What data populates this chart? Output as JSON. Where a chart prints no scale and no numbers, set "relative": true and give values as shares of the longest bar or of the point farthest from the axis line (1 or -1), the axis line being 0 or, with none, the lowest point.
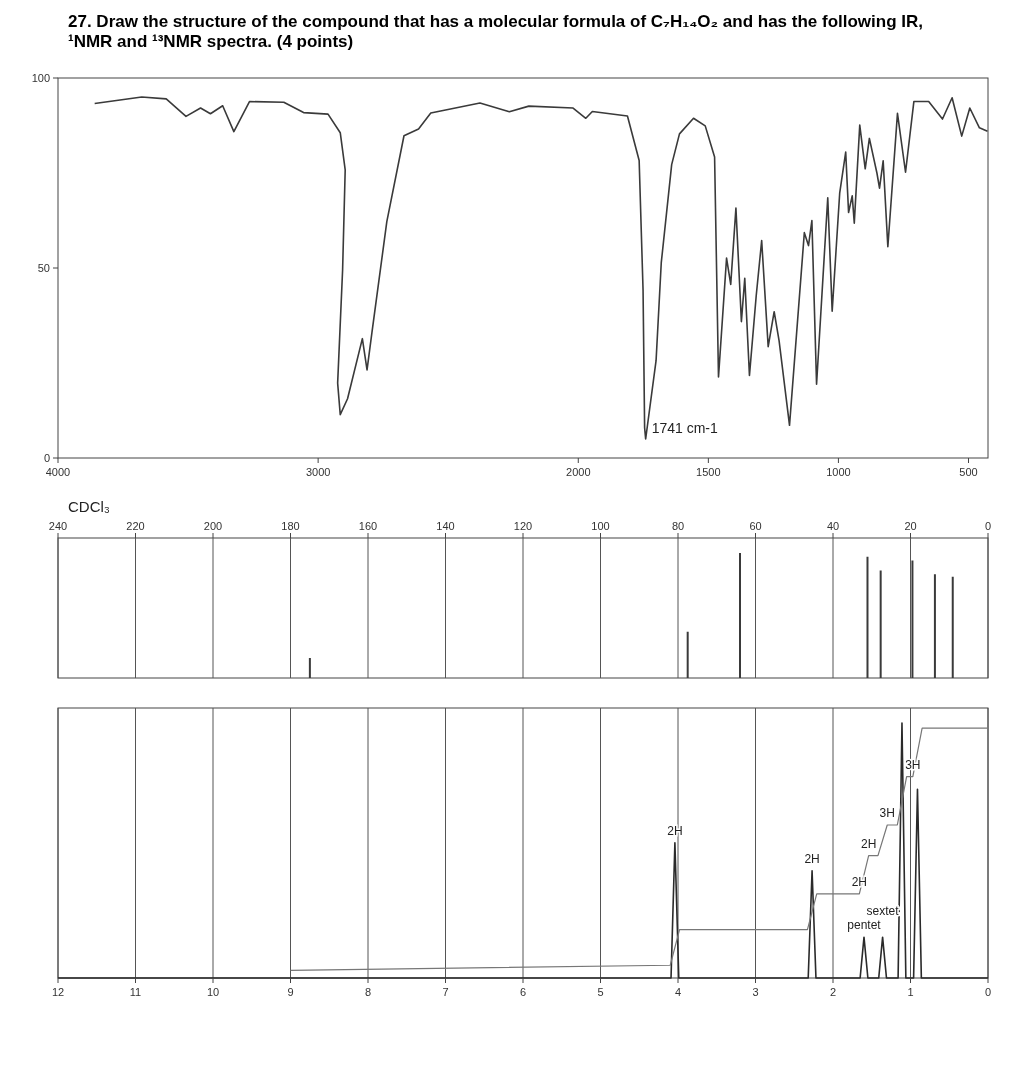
{
  "chart_data": [
    {
      "type": "line",
      "title": "27. Draw the structure of the compound that has a molecular formula of C₇H₁₄O₂ and has the following IR, ¹NMR and ¹³NMR spectra. (4 points)",
      "xlim": [
        4000,
        425
      ],
      "xticks": [
        4000,
        3000,
        2000,
        1500,
        1000,
        500
      ],
      "ylim": [
        0,
        100
      ],
      "yticks": [
        0,
        50,
        100
      ],
      "annotations": [
        {
          "text": "1741 cm-1",
          "x": 1741,
          "y": 5
        }
      ],
      "series": [
        {
          "color": "#3a3a3a",
          "x": [
            3859,
            3678,
            3584,
            3508,
            3452,
            3414,
            3367,
            3324,
            3264,
            3132,
            3056,
            2962,
            2915,
            2896,
            2906,
            2925,
            2915,
            2887,
            2830,
            2812,
            2793,
            2736,
            2670,
            2614,
            2567,
            2378,
            2265,
            2190,
            2020,
            1971,
            1946,
            1811,
            1766,
            1751,
            1745,
            1741,
            1701,
            1681,
            1641,
            1611,
            1557,
            1512,
            1476,
            1461,
            1430,
            1414,
            1394,
            1373,
            1360,
            1342,
            1316,
            1295,
            1270,
            1247,
            1228,
            1188,
            1131,
            1115,
            1102,
            1084,
            1041,
            1024,
            995,
            972,
            961,
            947,
            939,
            918,
            897,
            881,
            852,
            842,
            828,
            810,
            773,
            742,
            710,
            653,
            600,
            563,
            526,
            495,
            458,
            427
          ],
          "values": [
            93.3,
            95,
            94.5,
            89.9,
            92.1,
            90.6,
            92.7,
            85.9,
            93.8,
            93.6,
            90.9,
            90.5,
            85.6,
            75.8,
            49.4,
            19.7,
            11.4,
            15.6,
            31.4,
            23.2,
            33.1,
            62.2,
            84.8,
            86.6,
            90.8,
            93.4,
            91.1,
            92.6,
            92.1,
            89.4,
            91.2,
            90,
            78.3,
            44.2,
            8,
            5,
            25.6,
            51.4,
            77.2,
            85.3,
            89.4,
            87.4,
            79.2,
            21.3,
            52.6,
            45.7,
            65.8,
            35.9,
            47.3,
            21.7,
            42.7,
            57.2,
            29.3,
            38.5,
            30.8,
            8.6,
            59.3,
            55.9,
            62.5,
            19.4,
            68.5,
            38.6,
            69.8,
            80.5,
            64.6,
            69,
            61.8,
            87.6,
            76.1,
            84.1,
            75,
            71,
            78.2,
            55.6,
            90.7,
            75.2,
            93.8,
            93.8,
            89.2,
            94.8,
            84.7,
            92.1,
            86.9,
            86
          ]
        }
      ]
    },
    {
      "type": "bar",
      "relative": true,
      "xlim": [
        240,
        0
      ],
      "xticks": [
        240,
        220,
        200,
        180,
        160,
        140,
        120,
        100,
        80,
        60,
        40,
        20,
        0
      ],
      "grid": "x",
      "annotations": [
        "CDCl₃"
      ],
      "x": [
        175,
        77.5,
        64,
        31.1,
        27.7,
        19.5,
        13.7,
        9.1
      ],
      "series": [
        {
          "color": "#3a3a3a",
          "values": [
            0.16,
            0.37,
            1,
            0.97,
            0.86,
            0.94,
            0.83,
            0.81
          ]
        }
      ]
    },
    {
      "type": "line",
      "relative": true,
      "xlim": [
        12,
        0
      ],
      "xticks": [
        12,
        11,
        10,
        9,
        8,
        7,
        6,
        5,
        4,
        3,
        2,
        1,
        0
      ],
      "grid": "x",
      "annotations": [
        {
          "text": "2H",
          "x": 4.04,
          "y": 0.53
        },
        {
          "text": "2H",
          "x": 2.27,
          "y": 0.42
        },
        {
          "text": "2H",
          "x": 1.66,
          "y": 0.33
        },
        {
          "text": "2H",
          "x": 1.54,
          "y": 0.48
        },
        {
          "text": "3H",
          "x": 1.3,
          "y": 0.6
        },
        {
          "text": "3H",
          "x": 0.97,
          "y": 0.79
        },
        {
          "text": "pentet",
          "x": 1.6,
          "y": 0.16
        },
        {
          "text": "sextet",
          "x": 1.36,
          "y": 0.16
        }
      ],
      "series": [
        {
          "color": "#2a2a2a",
          "x": [
            12,
            4.09,
            4.04,
            3.99,
            2.32,
            2.27,
            2.22,
            1.65,
            1.6,
            1.55,
            1.41,
            1.36,
            1.31,
            1.16,
            1.11,
            1.06,
            0.96,
            0.91,
            0.86,
            0
          ],
          "values": [
            0,
            0,
            0.53,
            0,
            0,
            0.42,
            0,
            0,
            0.16,
            0,
            0,
            0.16,
            0,
            0,
            1,
            0,
            0,
            0.74,
            0,
            0
          ]
        },
        {
          "color": "#777777",
          "x": [
            9,
            4.1,
            3.98,
            2.33,
            2.21,
            1.66,
            1.54,
            1.42,
            1.3,
            1.17,
            1.05,
            0.97,
            0.85,
            0
          ],
          "values": [
            0.03,
            0.05,
            0.19,
            0.19,
            0.33,
            0.33,
            0.48,
            0.48,
            0.6,
            0.6,
            0.79,
            0.79,
            0.98,
            0.98
          ]
        }
      ]
    }
  ]
}
